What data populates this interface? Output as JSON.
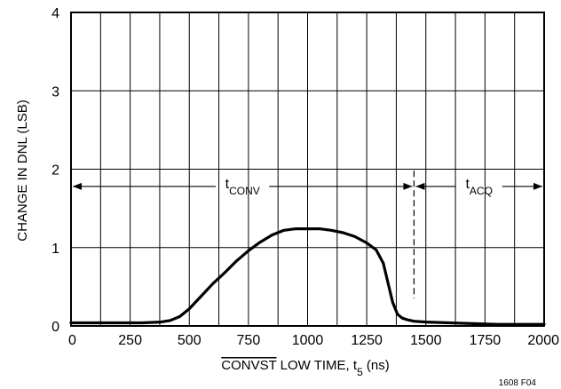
{
  "chart_data": {
    "type": "line",
    "xlabel": "CONVST LOW TIME, t5 (ns)",
    "xlabel_parts": {
      "overline": "CONVST",
      "rest": " LOW TIME, t",
      "sub": "5",
      "unit": " (ns)"
    },
    "ylabel": "CHANGE IN DNL (LSB)",
    "xlim": [
      0,
      2000
    ],
    "ylim": [
      0,
      4
    ],
    "x_ticks": [
      0,
      250,
      500,
      750,
      1000,
      1250,
      1500,
      1750,
      2000
    ],
    "y_ticks": [
      0,
      1,
      2,
      3,
      4
    ],
    "x_tick_labels": [
      "0",
      "250",
      "500",
      "750",
      "1000",
      "1250",
      "1500",
      "1750",
      "2000"
    ],
    "y_tick_labels": [
      "0",
      "1",
      "2",
      "3",
      "4"
    ],
    "grid": true,
    "x_minor_step": 125,
    "y_minor_step": 1,
    "series": [
      {
        "x": [
          0,
          100,
          200,
          300,
          380,
          420,
          460,
          500,
          550,
          600,
          650,
          700,
          750,
          800,
          850,
          900,
          950,
          1000,
          1050,
          1100,
          1150,
          1200,
          1250,
          1290,
          1320,
          1340,
          1360,
          1380,
          1400,
          1420,
          1450,
          1500,
          1600,
          1700,
          1800,
          1900,
          2000
        ],
        "y": [
          0.04,
          0.04,
          0.04,
          0.04,
          0.05,
          0.07,
          0.12,
          0.22,
          0.38,
          0.54,
          0.68,
          0.83,
          0.96,
          1.07,
          1.16,
          1.22,
          1.24,
          1.24,
          1.24,
          1.22,
          1.19,
          1.14,
          1.06,
          0.97,
          0.8,
          0.55,
          0.3,
          0.15,
          0.1,
          0.08,
          0.06,
          0.05,
          0.04,
          0.03,
          0.02,
          0.02,
          0.02
        ]
      }
    ],
    "vline_x": 1450,
    "annotations": [
      {
        "text": "t",
        "sub": "CONV",
        "from": 0,
        "to": 1450,
        "y": 1.78
      },
      {
        "text": "t",
        "sub": "ACQ",
        "from": 1450,
        "to": 2000,
        "y": 1.78
      }
    ],
    "figure_code": "1608 F04"
  }
}
